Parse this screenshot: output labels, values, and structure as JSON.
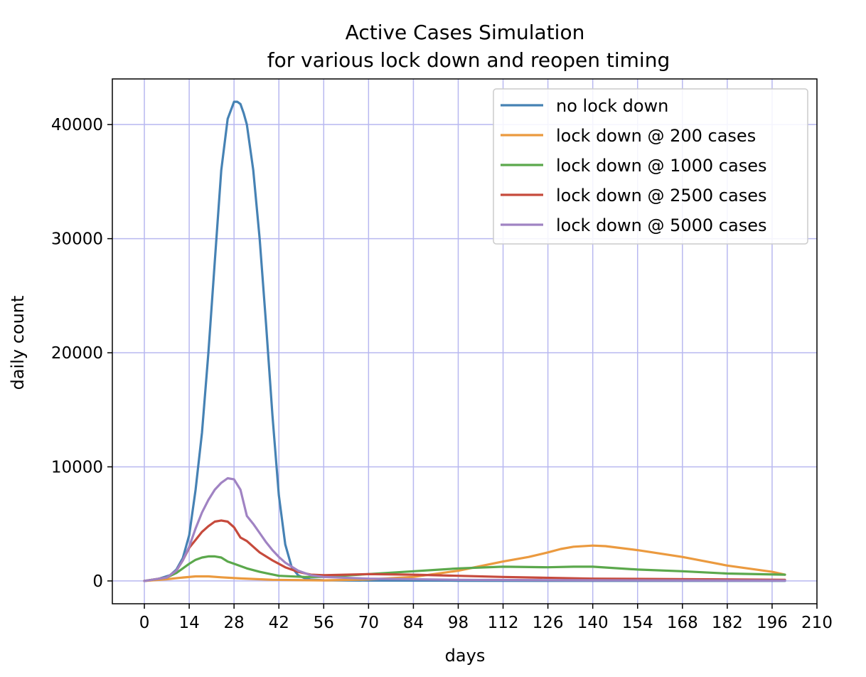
{
  "chart_data": {
    "type": "line",
    "title": "Active Cases Simulation",
    "subtitle": "for various lock down and reopen timing",
    "xlabel": "days",
    "ylabel": "daily count",
    "xlim": [
      -10,
      210
    ],
    "ylim": [
      -2000,
      44000
    ],
    "xticks": [
      0,
      14,
      28,
      42,
      56,
      70,
      84,
      98,
      112,
      126,
      140,
      154,
      168,
      182,
      196,
      210
    ],
    "yticks": [
      0,
      10000,
      20000,
      30000,
      40000
    ],
    "grid": true,
    "grid_color": "#b8b8f0",
    "legend_position": "top-right",
    "series": [
      {
        "name": "no lock down",
        "color": "#4682b4",
        "x": [
          0,
          4,
          8,
          10,
          12,
          14,
          16,
          18,
          20,
          22,
          24,
          26,
          28,
          29,
          30,
          31,
          32,
          34,
          36,
          38,
          40,
          42,
          44,
          46,
          48,
          50,
          52,
          56,
          70,
          98,
          140,
          200
        ],
        "y": [
          0,
          150,
          500,
          1000,
          2000,
          4000,
          8000,
          13000,
          20000,
          28000,
          36000,
          40500,
          42000,
          42000,
          41800,
          41000,
          40000,
          36000,
          30000,
          22500,
          14500,
          7500,
          3200,
          1200,
          500,
          250,
          120,
          60,
          30,
          20,
          10,
          5
        ]
      },
      {
        "name": "lock down @ 200 cases",
        "color": "#eb9a3f",
        "x": [
          0,
          7,
          12,
          16,
          20,
          24,
          30,
          40,
          56,
          70,
          84,
          98,
          112,
          120,
          126,
          130,
          134,
          140,
          144,
          154,
          168,
          182,
          196,
          200
        ],
        "y": [
          0,
          150,
          300,
          400,
          400,
          320,
          220,
          100,
          50,
          130,
          350,
          900,
          1700,
          2100,
          2500,
          2800,
          3000,
          3100,
          3050,
          2700,
          2100,
          1350,
          800,
          550
        ]
      },
      {
        "name": "lock down @ 1000 cases",
        "color": "#5ba84c",
        "x": [
          0,
          7,
          10,
          12,
          14,
          16,
          18,
          20,
          22,
          24,
          26,
          28,
          32,
          36,
          42,
          50,
          56,
          70,
          84,
          98,
          112,
          126,
          134,
          140,
          154,
          168,
          182,
          200
        ],
        "y": [
          0,
          300,
          700,
          1100,
          1500,
          1850,
          2050,
          2150,
          2150,
          2050,
          1700,
          1500,
          1100,
          800,
          450,
          350,
          350,
          600,
          850,
          1100,
          1250,
          1200,
          1250,
          1250,
          1000,
          850,
          650,
          550
        ]
      },
      {
        "name": "lock down @ 2500 cases",
        "color": "#c64a3c",
        "x": [
          0,
          7,
          10,
          12,
          14,
          16,
          18,
          20,
          22,
          24,
          26,
          28,
          30,
          32,
          34,
          36,
          40,
          44,
          48,
          52,
          56,
          70,
          84,
          98,
          112,
          140,
          170,
          200
        ],
        "y": [
          0,
          300,
          900,
          1800,
          2900,
          3600,
          4300,
          4800,
          5200,
          5300,
          5200,
          4700,
          3800,
          3500,
          3000,
          2500,
          1800,
          1200,
          800,
          550,
          500,
          600,
          550,
          450,
          350,
          200,
          150,
          100
        ]
      },
      {
        "name": "lock down @ 5000 cases",
        "color": "#a083c3",
        "x": [
          0,
          7,
          10,
          12,
          14,
          16,
          18,
          20,
          22,
          24,
          26,
          28,
          30,
          32,
          34,
          36,
          38,
          40,
          42,
          44,
          48,
          52,
          56,
          70,
          98,
          140,
          200
        ],
        "y": [
          0,
          300,
          900,
          1800,
          3000,
          4600,
          6000,
          7100,
          8000,
          8600,
          9000,
          8900,
          8000,
          5700,
          5000,
          4200,
          3400,
          2700,
          2100,
          1600,
          900,
          500,
          350,
          200,
          100,
          60,
          30
        ]
      }
    ]
  }
}
